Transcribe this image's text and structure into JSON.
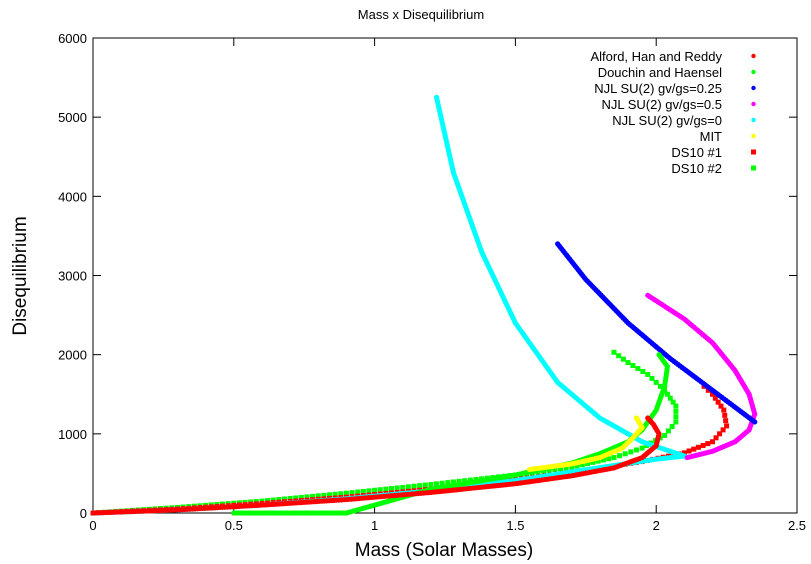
{
  "chart_data": {
    "type": "scatter",
    "title": "Mass x Disequilibrium",
    "xlabel": "Mass (Solar Masses)",
    "ylabel": "Disequilibrium",
    "xlim": [
      0,
      2.5
    ],
    "ylim": [
      0,
      6000
    ],
    "xticks": [
      0,
      0.5,
      1,
      1.5,
      2,
      2.5
    ],
    "yticks": [
      0,
      1000,
      2000,
      3000,
      4000,
      5000,
      6000
    ],
    "xtick_labels": [
      "0",
      "0.5",
      "1",
      "1.5",
      "2",
      "2.5"
    ],
    "ytick_labels": [
      "0",
      "1000",
      "2000",
      "3000",
      "4000",
      "5000",
      "6000"
    ],
    "legend_position": "top-right",
    "grid": false,
    "series": [
      {
        "name": "Alford, Han and Reddy",
        "color": "#ff0000",
        "marker": "dot",
        "points": [
          [
            0,
            0
          ],
          [
            0.3,
            40
          ],
          [
            0.6,
            100
          ],
          [
            0.9,
            170
          ],
          [
            1.2,
            260
          ],
          [
            1.5,
            370
          ],
          [
            1.7,
            470
          ],
          [
            1.85,
            570
          ],
          [
            1.95,
            700
          ],
          [
            2.0,
            850
          ],
          [
            2.01,
            1000
          ],
          [
            1.99,
            1120
          ],
          [
            1.97,
            1200
          ]
        ]
      },
      {
        "name": "Douchin and Haensel",
        "color": "#00ff00",
        "marker": "dot",
        "points": [
          [
            0.5,
            0
          ],
          [
            0.7,
            0
          ],
          [
            0.9,
            0
          ],
          [
            1.2,
            300
          ],
          [
            1.5,
            480
          ],
          [
            1.6,
            560
          ],
          [
            1.7,
            630
          ],
          [
            1.8,
            750
          ],
          [
            1.9,
            900
          ],
          [
            1.95,
            1050
          ],
          [
            2.0,
            1300
          ],
          [
            2.03,
            1600
          ],
          [
            2.04,
            1850
          ],
          [
            2.01,
            2000
          ]
        ]
      },
      {
        "name": "NJL SU(2) gv/gs=0.25",
        "color": "#0000ff",
        "marker": "dot",
        "points": [
          [
            1.65,
            3400
          ],
          [
            1.75,
            2950
          ],
          [
            1.9,
            2400
          ],
          [
            2.05,
            1950
          ],
          [
            2.2,
            1550
          ],
          [
            2.35,
            1150
          ]
        ]
      },
      {
        "name": "NJL SU(2) gv/gs=0.5",
        "color": "#ff00ff",
        "marker": "dot",
        "points": [
          [
            2.11,
            700
          ],
          [
            2.2,
            780
          ],
          [
            2.28,
            900
          ],
          [
            2.33,
            1050
          ],
          [
            2.35,
            1250
          ],
          [
            2.33,
            1500
          ],
          [
            2.28,
            1800
          ],
          [
            2.2,
            2150
          ],
          [
            2.1,
            2450
          ],
          [
            1.97,
            2750
          ]
        ]
      },
      {
        "name": "NJL SU(2) gv/gs=0",
        "color": "#00ffff",
        "marker": "dot",
        "points": [
          [
            0,
            0
          ],
          [
            0.3,
            40
          ],
          [
            0.6,
            100
          ],
          [
            0.9,
            180
          ],
          [
            1.2,
            280
          ],
          [
            1.5,
            410
          ],
          [
            1.7,
            520
          ],
          [
            1.85,
            600
          ],
          [
            2.0,
            680
          ],
          [
            2.1,
            720
          ],
          [
            1.95,
            900
          ],
          [
            1.8,
            1200
          ],
          [
            1.65,
            1650
          ],
          [
            1.5,
            2400
          ],
          [
            1.38,
            3300
          ],
          [
            1.28,
            4300
          ],
          [
            1.22,
            5250
          ]
        ]
      },
      {
        "name": "MIT",
        "color": "#ffff00",
        "marker": "dot",
        "points": [
          [
            1.55,
            550
          ],
          [
            1.7,
            620
          ],
          [
            1.8,
            700
          ],
          [
            1.88,
            820
          ],
          [
            1.92,
            960
          ],
          [
            1.95,
            1080
          ],
          [
            1.93,
            1200
          ]
        ]
      },
      {
        "name": "DS10 #1",
        "color": "#ff0000",
        "marker": "square",
        "points": [
          [
            0,
            0
          ],
          [
            0.3,
            50
          ],
          [
            0.6,
            120
          ],
          [
            0.9,
            200
          ],
          [
            1.2,
            300
          ],
          [
            1.5,
            420
          ],
          [
            1.75,
            540
          ],
          [
            1.95,
            650
          ],
          [
            2.1,
            760
          ],
          [
            2.2,
            900
          ],
          [
            2.25,
            1100
          ],
          [
            2.24,
            1300
          ],
          [
            2.2,
            1500
          ],
          [
            2.17,
            1600
          ]
        ]
      },
      {
        "name": "DS10 #2",
        "color": "#00ff00",
        "marker": "square",
        "points": [
          [
            0,
            0
          ],
          [
            0.3,
            70
          ],
          [
            0.6,
            150
          ],
          [
            0.9,
            250
          ],
          [
            1.2,
            360
          ],
          [
            1.5,
            480
          ],
          [
            1.7,
            580
          ],
          [
            1.85,
            700
          ],
          [
            1.95,
            820
          ],
          [
            2.03,
            980
          ],
          [
            2.07,
            1150
          ],
          [
            2.07,
            1350
          ],
          [
            2.03,
            1550
          ],
          [
            1.97,
            1750
          ],
          [
            1.9,
            1900
          ],
          [
            1.85,
            2030
          ]
        ]
      }
    ]
  }
}
